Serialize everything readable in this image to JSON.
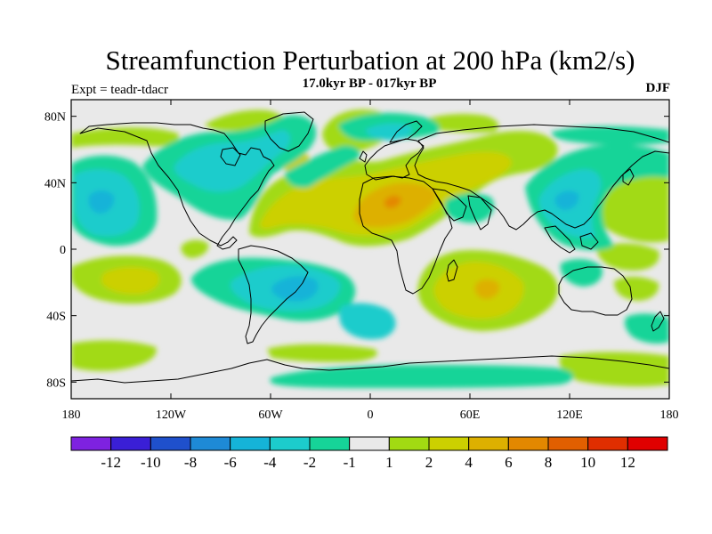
{
  "title": "Streamfunction Perturbation at 200 hPa (km2/s)",
  "subtitle": "17.0kyr BP - 017kyr BP",
  "experiment_label": "Expt = teadr-tdacr",
  "season": "DJF",
  "chart_data": {
    "type": "filled-contour-map",
    "title": "Streamfunction Perturbation at 200 hPa (km2/s)",
    "subtitle": "17.0kyr BP - 017kyr BP",
    "variable": "streamfunction perturbation",
    "level_hPa": 200,
    "units": "km2/s",
    "season": "DJF",
    "x_axis": {
      "range": [
        -180,
        180
      ],
      "ticks": [
        -180,
        -120,
        -60,
        0,
        60,
        120,
        180
      ],
      "tick_labels": [
        "180",
        "120W",
        "60W",
        "0",
        "60E",
        "120E",
        "180"
      ]
    },
    "y_axis": {
      "range": [
        -90,
        90
      ],
      "ticks": [
        80,
        40,
        0,
        -40,
        -80
      ],
      "tick_labels": [
        "80N",
        "40N",
        "0",
        "40S",
        "80S"
      ]
    },
    "colorbar": {
      "labels": [
        "-12",
        "-10",
        "-8",
        "-6",
        "-4",
        "-2",
        "-1",
        "1",
        "2",
        "4",
        "6",
        "8",
        "10",
        "12"
      ],
      "colors": [
        "#7e22e0",
        "#3a1fd6",
        "#1f50cc",
        "#1e8ad6",
        "#15b3d8",
        "#1ccccc",
        "#16d498",
        "#e9e9e9",
        "#a2da12",
        "#ccd000",
        "#ddb000",
        "#e38800",
        "#e15f00",
        "#e02e00",
        "#e00000"
      ]
    },
    "features": [
      {
        "region": "North Atlantic / North Africa",
        "sign": "positive",
        "peak_class": "4 to 6"
      },
      {
        "region": "Southern Indian Ocean",
        "sign": "positive",
        "peak_class": "4 to 6"
      },
      {
        "region": "South America / South Atlantic",
        "sign": "negative",
        "peak_class": "-6 to -4"
      },
      {
        "region": "Subtropical North Pacific",
        "sign": "negative",
        "peak_class": "-6 to -4"
      },
      {
        "region": "East Asia / NW Pacific",
        "sign": "negative",
        "peak_class": "-6 to -4"
      },
      {
        "region": "Southern Ocean 45-60S",
        "sign": "negative",
        "peak_class": "-2 to -1"
      }
    ]
  }
}
